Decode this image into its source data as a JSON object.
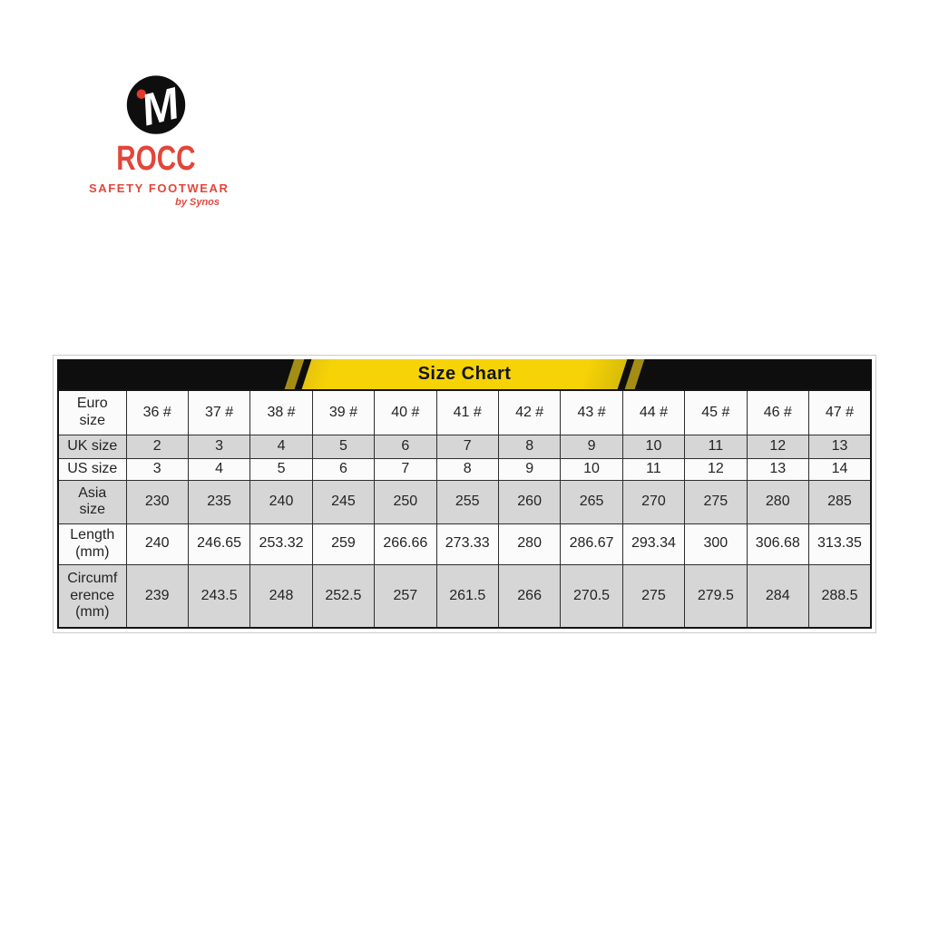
{
  "brand": {
    "monogram": "M",
    "name": "ROCC",
    "tagline": "SAFETY FOOTWEAR",
    "byline": "by Synos",
    "colors": {
      "red": "#e2463a",
      "black": "#0e0e0e",
      "monogram_letter": "#ffffff"
    }
  },
  "size_chart": {
    "title": "Size Chart",
    "banner_colors": {
      "bar": "#0e0e0e",
      "ribbon_yellow": "#f5d306",
      "ribbon_edge_gold": "#a38d15",
      "title_text": "#141414"
    },
    "row_shade_color": "#d6d6d6"
  },
  "chart_data": {
    "type": "table",
    "title": "Size Chart",
    "columns_per_row": 12,
    "rows": [
      {
        "label": "Euro size",
        "values": [
          "36 #",
          "37 #",
          "38 #",
          "39 #",
          "40 #",
          "41 #",
          "42 #",
          "43 #",
          "44 #",
          "45 #",
          "46 #",
          "47 #"
        ]
      },
      {
        "label": "UK size",
        "values": [
          "2",
          "3",
          "4",
          "5",
          "6",
          "7",
          "8",
          "9",
          "10",
          "11",
          "12",
          "13"
        ]
      },
      {
        "label": "US size",
        "values": [
          "3",
          "4",
          "5",
          "6",
          "7",
          "8",
          "9",
          "10",
          "11",
          "12",
          "13",
          "14"
        ]
      },
      {
        "label": "Asia size",
        "values": [
          "230",
          "235",
          "240",
          "245",
          "250",
          "255",
          "260",
          "265",
          "270",
          "275",
          "280",
          "285"
        ]
      },
      {
        "label": "Length (mm)",
        "values": [
          "240",
          "246.65",
          "253.32",
          "259",
          "266.66",
          "273.33",
          "280",
          "286.67",
          "293.34",
          "300",
          "306.68",
          "313.35"
        ]
      },
      {
        "label": "Circumference (mm)",
        "values": [
          "239",
          "243.5",
          "248",
          "252.5",
          "257",
          "261.5",
          "266",
          "270.5",
          "275",
          "279.5",
          "284",
          "288.5"
        ]
      }
    ]
  }
}
